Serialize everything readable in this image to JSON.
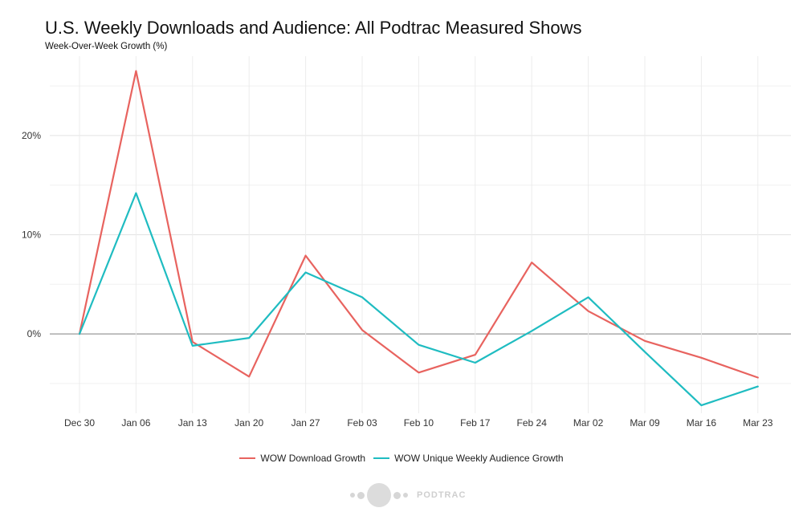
{
  "chart_data": {
    "type": "line",
    "title": "U.S. Weekly Downloads and Audience: All Podtrac Measured Shows",
    "subtitle": "Week-Over-Week Growth (%)",
    "xlabel": "",
    "ylabel": "",
    "categories": [
      "Dec 30",
      "Jan 06",
      "Jan 13",
      "Jan 20",
      "Jan 27",
      "Feb 03",
      "Feb 10",
      "Feb 17",
      "Feb 24",
      "Mar 02",
      "Mar 09",
      "Mar 16",
      "Mar 23"
    ],
    "y_ticks": [
      0,
      10,
      20
    ],
    "y_tick_labels": [
      "0%",
      "10%",
      "20%"
    ],
    "ylim": [
      -8,
      28
    ],
    "grid": true,
    "legend_position": "bottom",
    "series": [
      {
        "name": "WOW Download Growth",
        "color": "#e8635f",
        "values": [
          0,
          26.5,
          -0.8,
          -4.3,
          7.9,
          0.4,
          -3.9,
          -2.1,
          7.2,
          2.3,
          -0.7,
          -2.4,
          -4.4
        ]
      },
      {
        "name": "WOW Unique Weekly Audience Growth",
        "color": "#1fbcc1",
        "values": [
          0,
          14.2,
          -1.2,
          -0.4,
          6.2,
          3.7,
          -1.1,
          -2.9,
          0.3,
          3.7,
          -1.8,
          -7.2,
          -5.3
        ]
      }
    ]
  },
  "branding": {
    "logo_text": "PODTRAC"
  }
}
